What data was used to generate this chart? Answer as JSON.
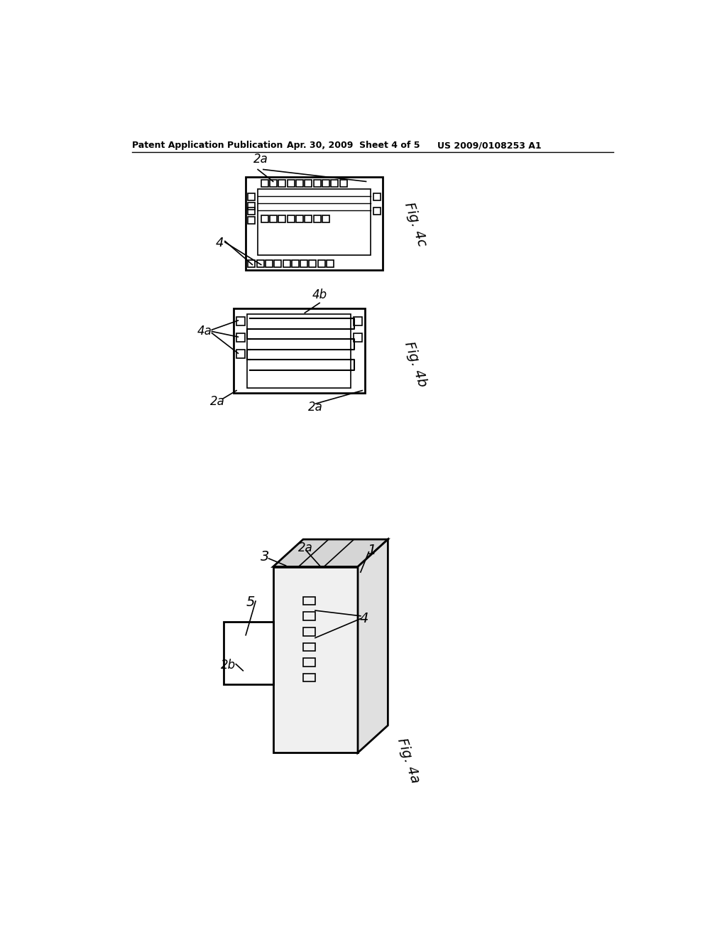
{
  "background_color": "#ffffff",
  "header_left": "Patent Application Publication",
  "header_mid": "Apr. 30, 2009  Sheet 4 of 5",
  "header_right": "US 2009/0108253 A1",
  "fig4c_label": "Fig. 4c",
  "fig4b_label": "Fig. 4b",
  "fig4a_label": "Fig. 4a"
}
